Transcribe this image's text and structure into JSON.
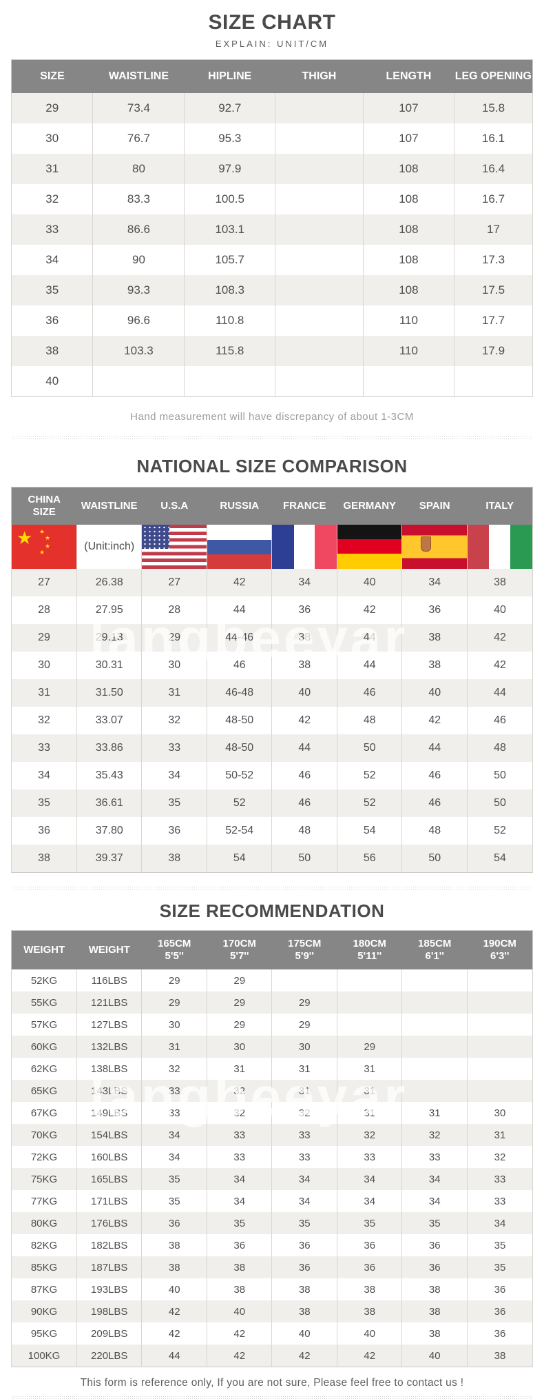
{
  "watermark": "langbeeyar",
  "colors": {
    "header_bg": "#868686",
    "alt_row_bg": "#f1efec",
    "china_flag_red": "#e4312b",
    "title_text": "#4a4a4a"
  },
  "size_chart": {
    "title": "SIZE CHART",
    "subtitle": "EXPLAIN: UNIT/CM",
    "columns": [
      "SIZE",
      "WAISTLINE",
      "HIPLINE",
      "THIGH",
      "LENGTH",
      "LEG OPENING"
    ],
    "rows": [
      [
        "29",
        "73.4",
        "92.7",
        "",
        "107",
        "15.8"
      ],
      [
        "30",
        "76.7",
        "95.3",
        "",
        "107",
        "16.1"
      ],
      [
        "31",
        "80",
        "97.9",
        "",
        "108",
        "16.4"
      ],
      [
        "32",
        "83.3",
        "100.5",
        "",
        "108",
        "16.7"
      ],
      [
        "33",
        "86.6",
        "103.1",
        "",
        "108",
        "17"
      ],
      [
        "34",
        "90",
        "105.7",
        "",
        "108",
        "17.3"
      ],
      [
        "35",
        "93.3",
        "108.3",
        "",
        "108",
        "17.5"
      ],
      [
        "36",
        "96.6",
        "110.8",
        "",
        "110",
        "17.7"
      ],
      [
        "38",
        "103.3",
        "115.8",
        "",
        "110",
        "17.9"
      ],
      [
        "40",
        "",
        "",
        "",
        "",
        ""
      ]
    ],
    "note": "Hand measurement will have discrepancy of about 1-3CM"
  },
  "national_size_comparison": {
    "title": "NATIONAL SIZE COMPARISON",
    "columns": [
      [
        "CHINA",
        "SIZE"
      ],
      [
        "WAISTLINE"
      ],
      [
        "U.S.A"
      ],
      [
        "RUSSIA"
      ],
      [
        "FRANCE"
      ],
      [
        "GERMANY"
      ],
      [
        "SPAIN"
      ],
      [
        "ITALY"
      ]
    ],
    "unit_label": "(Unit:inch)",
    "flags": [
      "china",
      "unit",
      "usa",
      "russia",
      "france",
      "germany",
      "spain",
      "italy"
    ],
    "rows": [
      [
        "27",
        "26.38",
        "27",
        "42",
        "34",
        "40",
        "34",
        "38"
      ],
      [
        "28",
        "27.95",
        "28",
        "44",
        "36",
        "42",
        "36",
        "40"
      ],
      [
        "29",
        "29.13",
        "29",
        "44-46",
        "38",
        "44",
        "38",
        "42"
      ],
      [
        "30",
        "30.31",
        "30",
        "46",
        "38",
        "44",
        "38",
        "42"
      ],
      [
        "31",
        "31.50",
        "31",
        "46-48",
        "40",
        "46",
        "40",
        "44"
      ],
      [
        "32",
        "33.07",
        "32",
        "48-50",
        "42",
        "48",
        "42",
        "46"
      ],
      [
        "33",
        "33.86",
        "33",
        "48-50",
        "44",
        "50",
        "44",
        "48"
      ],
      [
        "34",
        "35.43",
        "34",
        "50-52",
        "46",
        "52",
        "46",
        "50"
      ],
      [
        "35",
        "36.61",
        "35",
        "52",
        "46",
        "52",
        "46",
        "50"
      ],
      [
        "36",
        "37.80",
        "36",
        "52-54",
        "48",
        "54",
        "48",
        "52"
      ],
      [
        "38",
        "39.37",
        "38",
        "54",
        "50",
        "56",
        "50",
        "54"
      ]
    ]
  },
  "size_recommendation": {
    "title": "SIZE RECOMMENDATION",
    "columns": [
      [
        "WEIGHT"
      ],
      [
        "WEIGHT"
      ],
      [
        "165CM",
        "5'5''"
      ],
      [
        "170CM",
        "5'7''"
      ],
      [
        "175CM",
        "5'9''"
      ],
      [
        "180CM",
        "5'11''"
      ],
      [
        "185CM",
        "6'1''"
      ],
      [
        "190CM",
        "6'3''"
      ]
    ],
    "rows": [
      [
        "52KG",
        "116LBS",
        "29",
        "29",
        "",
        "",
        "",
        ""
      ],
      [
        "55KG",
        "121LBS",
        "29",
        "29",
        "29",
        "",
        "",
        ""
      ],
      [
        "57KG",
        "127LBS",
        "30",
        "29",
        "29",
        "",
        "",
        ""
      ],
      [
        "60KG",
        "132LBS",
        "31",
        "30",
        "30",
        "29",
        "",
        ""
      ],
      [
        "62KG",
        "138LBS",
        "32",
        "31",
        "31",
        "31",
        "",
        ""
      ],
      [
        "65KG",
        "143LBS",
        "33",
        "32",
        "31",
        "31",
        "",
        ""
      ],
      [
        "67KG",
        "149LBS",
        "33",
        "32",
        "32",
        "31",
        "31",
        "30"
      ],
      [
        "70KG",
        "154LBS",
        "34",
        "33",
        "33",
        "32",
        "32",
        "31"
      ],
      [
        "72KG",
        "160LBS",
        "34",
        "33",
        "33",
        "33",
        "33",
        "32"
      ],
      [
        "75KG",
        "165LBS",
        "35",
        "34",
        "34",
        "34",
        "34",
        "33"
      ],
      [
        "77KG",
        "171LBS",
        "35",
        "34",
        "34",
        "34",
        "34",
        "33"
      ],
      [
        "80KG",
        "176LBS",
        "36",
        "35",
        "35",
        "35",
        "35",
        "34"
      ],
      [
        "82KG",
        "182LBS",
        "38",
        "36",
        "36",
        "36",
        "36",
        "35"
      ],
      [
        "85KG",
        "187LBS",
        "38",
        "38",
        "36",
        "36",
        "36",
        "35"
      ],
      [
        "87KG",
        "193LBS",
        "40",
        "38",
        "38",
        "38",
        "38",
        "36"
      ],
      [
        "90KG",
        "198LBS",
        "42",
        "40",
        "38",
        "38",
        "38",
        "36"
      ],
      [
        "95KG",
        "209LBS",
        "42",
        "42",
        "40",
        "40",
        "38",
        "36"
      ],
      [
        "100KG",
        "220LBS",
        "44",
        "42",
        "42",
        "42",
        "40",
        "38"
      ]
    ],
    "footer": "This form is reference only, If you are not sure, Please feel free to contact us !"
  }
}
